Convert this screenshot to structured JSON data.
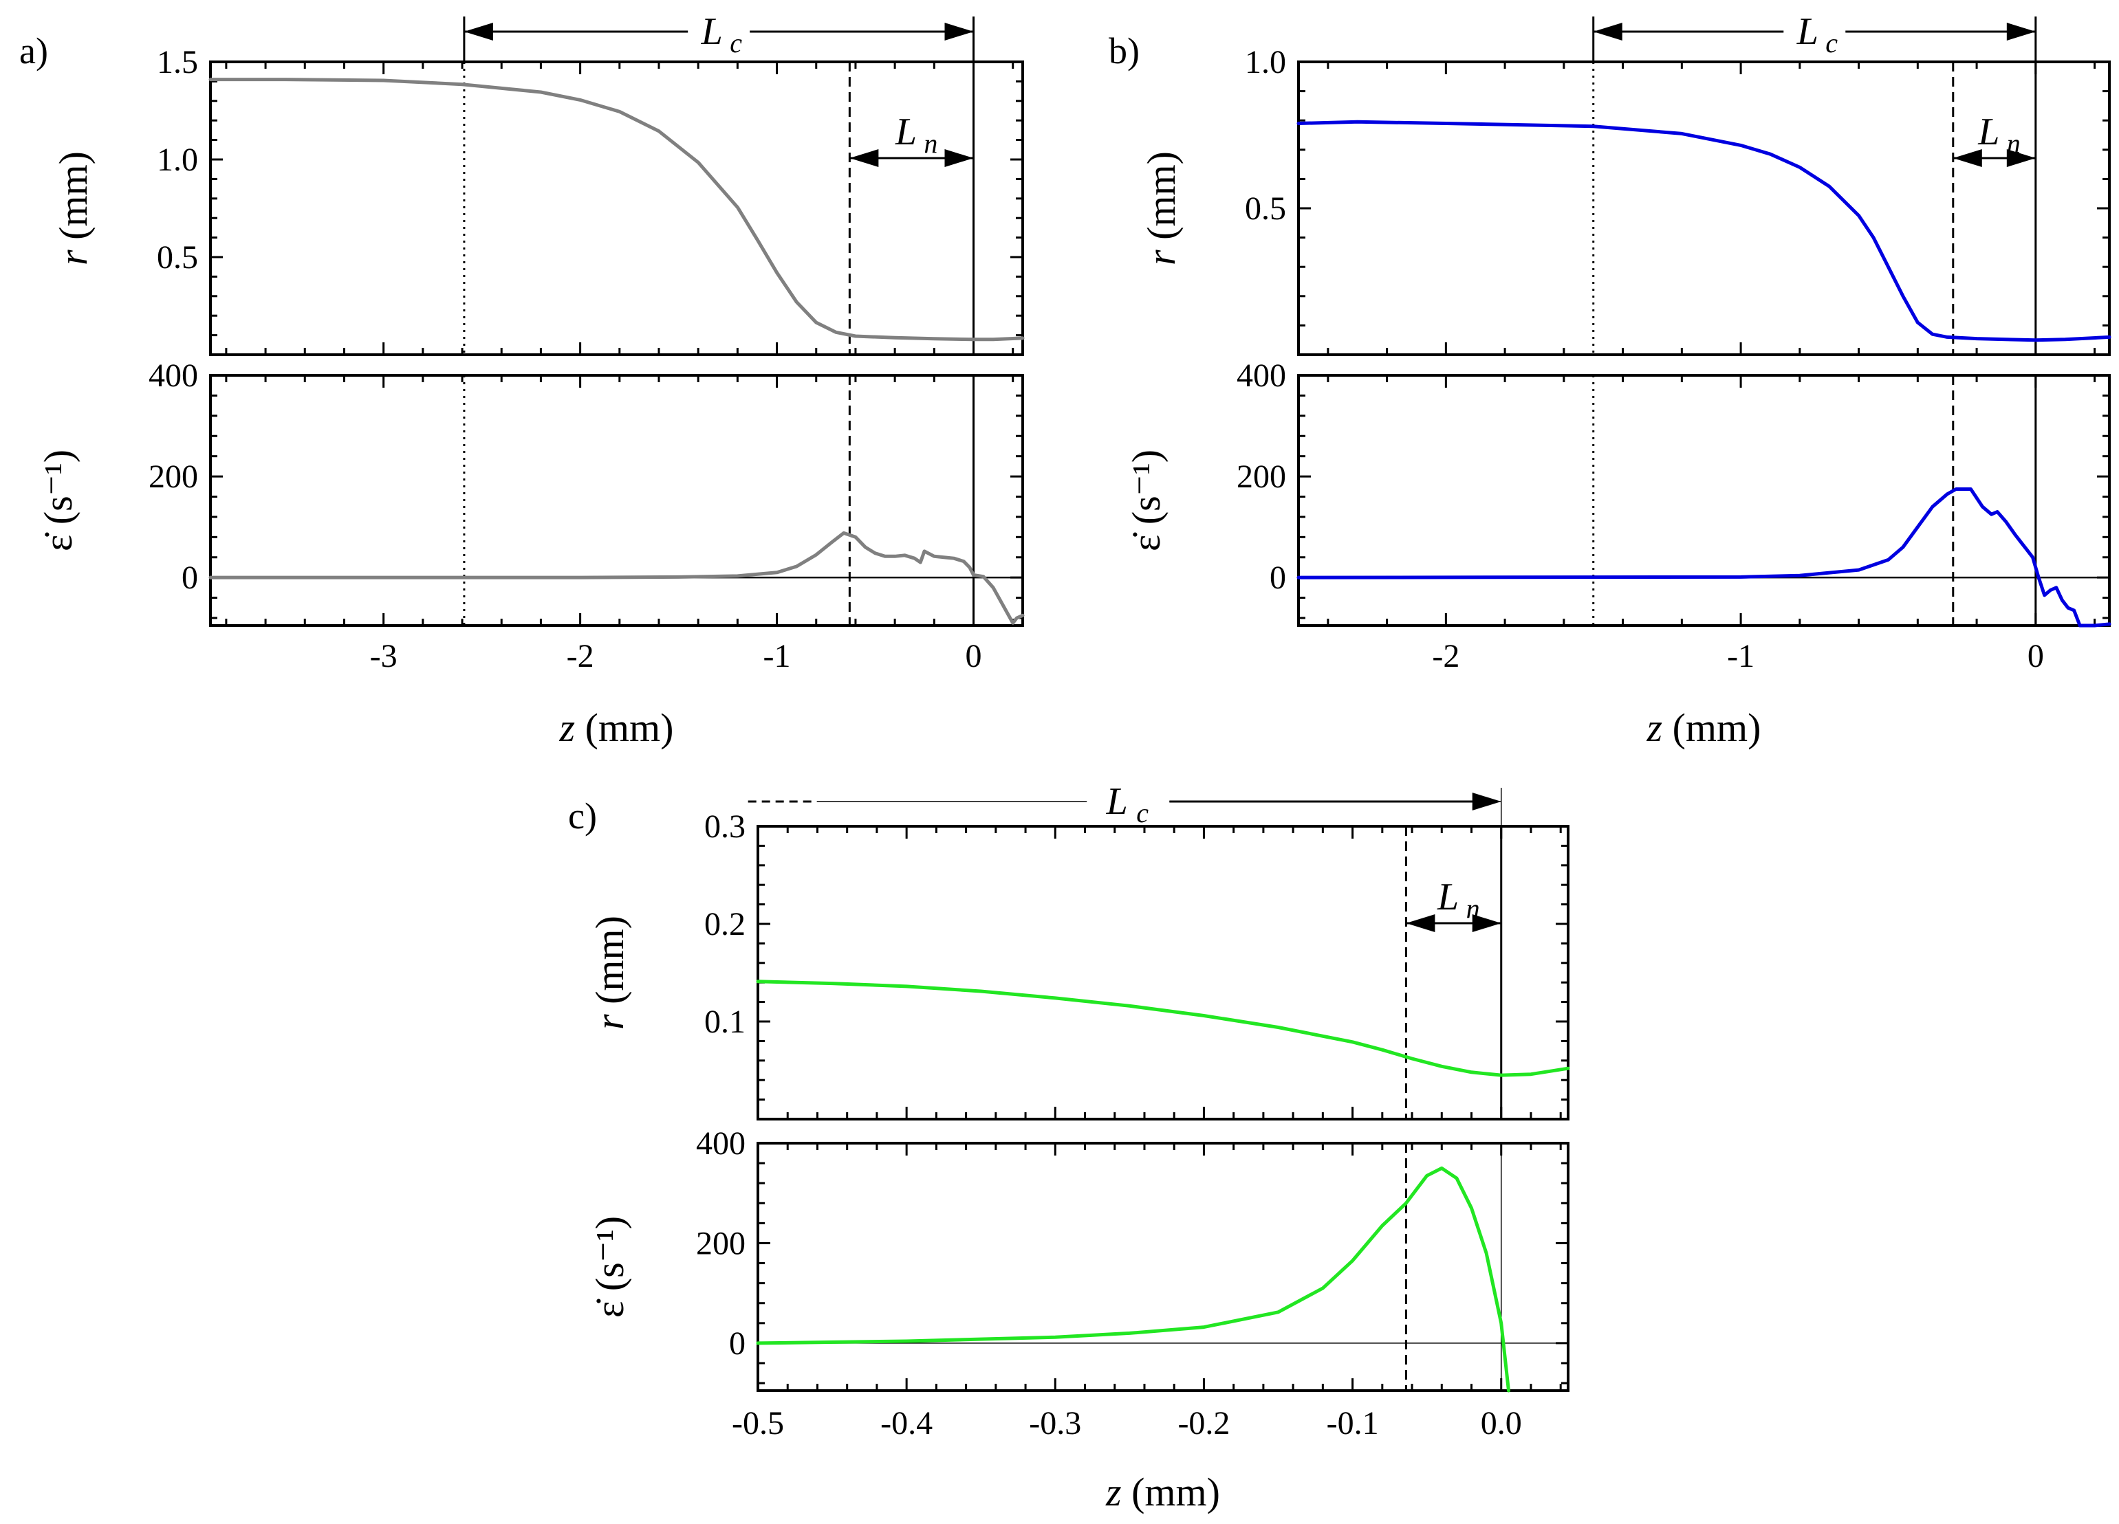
{
  "figure": {
    "colors": {
      "a": "#808080",
      "b": "#0000e0",
      "c": "#22e622",
      "axis": "#000000"
    }
  },
  "chart_data": [
    {
      "id": "a",
      "panel_label": "a)",
      "type": "line",
      "color": "#808080",
      "xlabel": "z (mm)",
      "xlim": [
        -3.88,
        0.25
      ],
      "xticks": [
        -3,
        -2,
        -1,
        0
      ],
      "xtick_labels": [
        "-3",
        "-2",
        "-1",
        "0"
      ],
      "annotations": {
        "Lc_main": "L",
        "Lc_sub": "c",
        "Ln_main": "L",
        "Ln_sub": "n"
      },
      "markers": {
        "dotted_z": -2.59,
        "dashed_z": -0.63,
        "solid_z": 0.0
      },
      "top": {
        "ylabel": "r (mm)",
        "ylim": [
          0.0,
          1.5
        ],
        "yticks": [
          0.5,
          1.0,
          1.5
        ],
        "ytick_labels": [
          "0.5",
          "1.0",
          "1.5"
        ],
        "series": [
          {
            "name": "r",
            "x": [
              -3.88,
              -3.5,
              -3.0,
              -2.6,
              -2.2,
              -2.0,
              -1.8,
              -1.6,
              -1.4,
              -1.2,
              -1.1,
              -1.0,
              -0.9,
              -0.8,
              -0.7,
              -0.6,
              -0.4,
              -0.2,
              0.0,
              0.1,
              0.25
            ],
            "y": [
              1.41,
              1.41,
              1.405,
              1.385,
              1.345,
              1.305,
              1.245,
              1.145,
              0.985,
              0.755,
              0.59,
              0.42,
              0.27,
              0.165,
              0.115,
              0.095,
              0.087,
              0.082,
              0.078,
              0.078,
              0.085
            ]
          }
        ]
      },
      "bottom": {
        "ylabel": "ε̇ (s⁻¹)",
        "ylim": [
          -95,
          400
        ],
        "yticks": [
          0,
          200,
          400
        ],
        "ytick_labels": [
          "0",
          "200",
          "400"
        ],
        "zero_line": true,
        "series": [
          {
            "name": "strain rate",
            "x": [
              -3.88,
              -2.0,
              -1.5,
              -1.2,
              -1.0,
              -0.9,
              -0.8,
              -0.72,
              -0.66,
              -0.6,
              -0.55,
              -0.5,
              -0.45,
              -0.4,
              -0.35,
              -0.3,
              -0.27,
              -0.25,
              -0.2,
              -0.15,
              -0.1,
              -0.05,
              -0.02,
              0.0,
              0.05,
              0.1,
              0.15,
              0.2,
              0.22,
              0.25
            ],
            "y": [
              0,
              0,
              1,
              3,
              10,
              22,
              45,
              70,
              88,
              80,
              60,
              48,
              42,
              42,
              44,
              38,
              30,
              52,
              42,
              40,
              38,
              32,
              20,
              5,
              2,
              -20,
              -55,
              -90,
              -80,
              -75
            ]
          }
        ]
      }
    },
    {
      "id": "b",
      "panel_label": "b)",
      "type": "line",
      "color": "#0000e0",
      "xlabel": "z (mm)",
      "xlim": [
        -2.5,
        0.25
      ],
      "xticks": [
        -2,
        -1,
        0
      ],
      "xtick_labels": [
        "-2",
        "-1",
        "0"
      ],
      "annotations": {
        "Lc_main": "L",
        "Lc_sub": "c",
        "Ln_main": "L",
        "Ln_sub": "n"
      },
      "markers": {
        "dotted_z": -1.5,
        "dashed_z": -0.28,
        "solid_z": 0.0
      },
      "top": {
        "ylabel": "r (mm)",
        "ylim": [
          0.0,
          1.0
        ],
        "yticks": [
          0.5,
          1.0
        ],
        "ytick_labels": [
          "0.5",
          "1.0"
        ],
        "series": [
          {
            "name": "r",
            "x": [
              -2.5,
              -2.3,
              -2.0,
              -1.5,
              -1.2,
              -1.0,
              -0.9,
              -0.8,
              -0.7,
              -0.6,
              -0.55,
              -0.5,
              -0.45,
              -0.4,
              -0.35,
              -0.3,
              -0.2,
              -0.1,
              0.0,
              0.1,
              0.25
            ],
            "y": [
              0.79,
              0.795,
              0.79,
              0.78,
              0.755,
              0.715,
              0.685,
              0.64,
              0.575,
              0.475,
              0.4,
              0.3,
              0.2,
              0.11,
              0.07,
              0.06,
              0.055,
              0.052,
              0.05,
              0.052,
              0.06
            ]
          }
        ]
      },
      "bottom": {
        "ylabel": "ε̇ (s⁻¹)",
        "ylim": [
          -95,
          400
        ],
        "yticks": [
          0,
          200,
          400
        ],
        "ytick_labels": [
          "0",
          "200",
          "400"
        ],
        "zero_line": true,
        "series": [
          {
            "name": "strain rate",
            "x": [
              -2.5,
              -1.0,
              -0.8,
              -0.6,
              -0.5,
              -0.45,
              -0.4,
              -0.35,
              -0.3,
              -0.27,
              -0.22,
              -0.18,
              -0.15,
              -0.13,
              -0.1,
              -0.07,
              -0.05,
              -0.03,
              -0.01,
              0.0,
              0.01,
              0.03,
              0.05,
              0.07,
              0.09,
              0.11,
              0.13,
              0.15,
              0.2,
              0.25
            ],
            "y": [
              0,
              1,
              4,
              15,
              35,
              60,
              100,
              140,
              165,
              175,
              175,
              140,
              125,
              130,
              110,
              85,
              70,
              55,
              40,
              20,
              0,
              -35,
              -25,
              -20,
              -45,
              -60,
              -65,
              -95,
              -95,
              -92
            ]
          }
        ]
      }
    },
    {
      "id": "c",
      "panel_label": "c)",
      "type": "line",
      "color": "#22e622",
      "xlabel": "z (mm)",
      "xlim": [
        -0.5,
        0.045
      ],
      "xticks": [
        -0.5,
        -0.4,
        -0.3,
        -0.2,
        -0.1,
        0.0
      ],
      "xtick_labels": [
        "-0.5",
        "-0.4",
        "-0.3",
        "-0.2",
        "-0.1",
        "0.0"
      ],
      "annotations": {
        "Lc_main": "L",
        "Lc_sub": "c",
        "Ln_main": "L",
        "Ln_sub": "n"
      },
      "markers": {
        "dashed_z": -0.064,
        "solid_z": 0.0,
        "Lc_arrow_start_z": -0.502
      },
      "top": {
        "ylabel": "r (mm)",
        "ylim": [
          0.0,
          0.3
        ],
        "yticks": [
          0.1,
          0.2,
          0.3
        ],
        "ytick_labels": [
          "0.1",
          "0.2",
          "0.3"
        ],
        "series": [
          {
            "name": "r",
            "x": [
              -0.5,
              -0.45,
              -0.4,
              -0.35,
              -0.3,
              -0.25,
              -0.2,
              -0.15,
              -0.1,
              -0.08,
              -0.06,
              -0.04,
              -0.02,
              0.0,
              0.02,
              0.045
            ],
            "y": [
              0.141,
              0.139,
              0.136,
              0.131,
              0.124,
              0.116,
              0.106,
              0.094,
              0.079,
              0.071,
              0.062,
              0.054,
              0.048,
              0.045,
              0.046,
              0.052
            ]
          }
        ]
      },
      "bottom": {
        "ylabel": "ε̇ (s⁻¹)",
        "ylim": [
          -95,
          400
        ],
        "yticks": [
          0,
          200,
          400
        ],
        "ytick_labels": [
          "0",
          "200",
          "400"
        ],
        "zero_line": true,
        "series": [
          {
            "name": "strain rate",
            "x": [
              -0.5,
              -0.4,
              -0.3,
              -0.25,
              -0.2,
              -0.15,
              -0.12,
              -0.1,
              -0.08,
              -0.064,
              -0.05,
              -0.04,
              -0.03,
              -0.02,
              -0.01,
              0.0,
              0.005
            ],
            "y": [
              0,
              4,
              12,
              20,
              32,
              62,
              110,
              165,
              235,
              280,
              335,
              350,
              330,
              270,
              180,
              40,
              -95
            ]
          }
        ]
      }
    }
  ]
}
